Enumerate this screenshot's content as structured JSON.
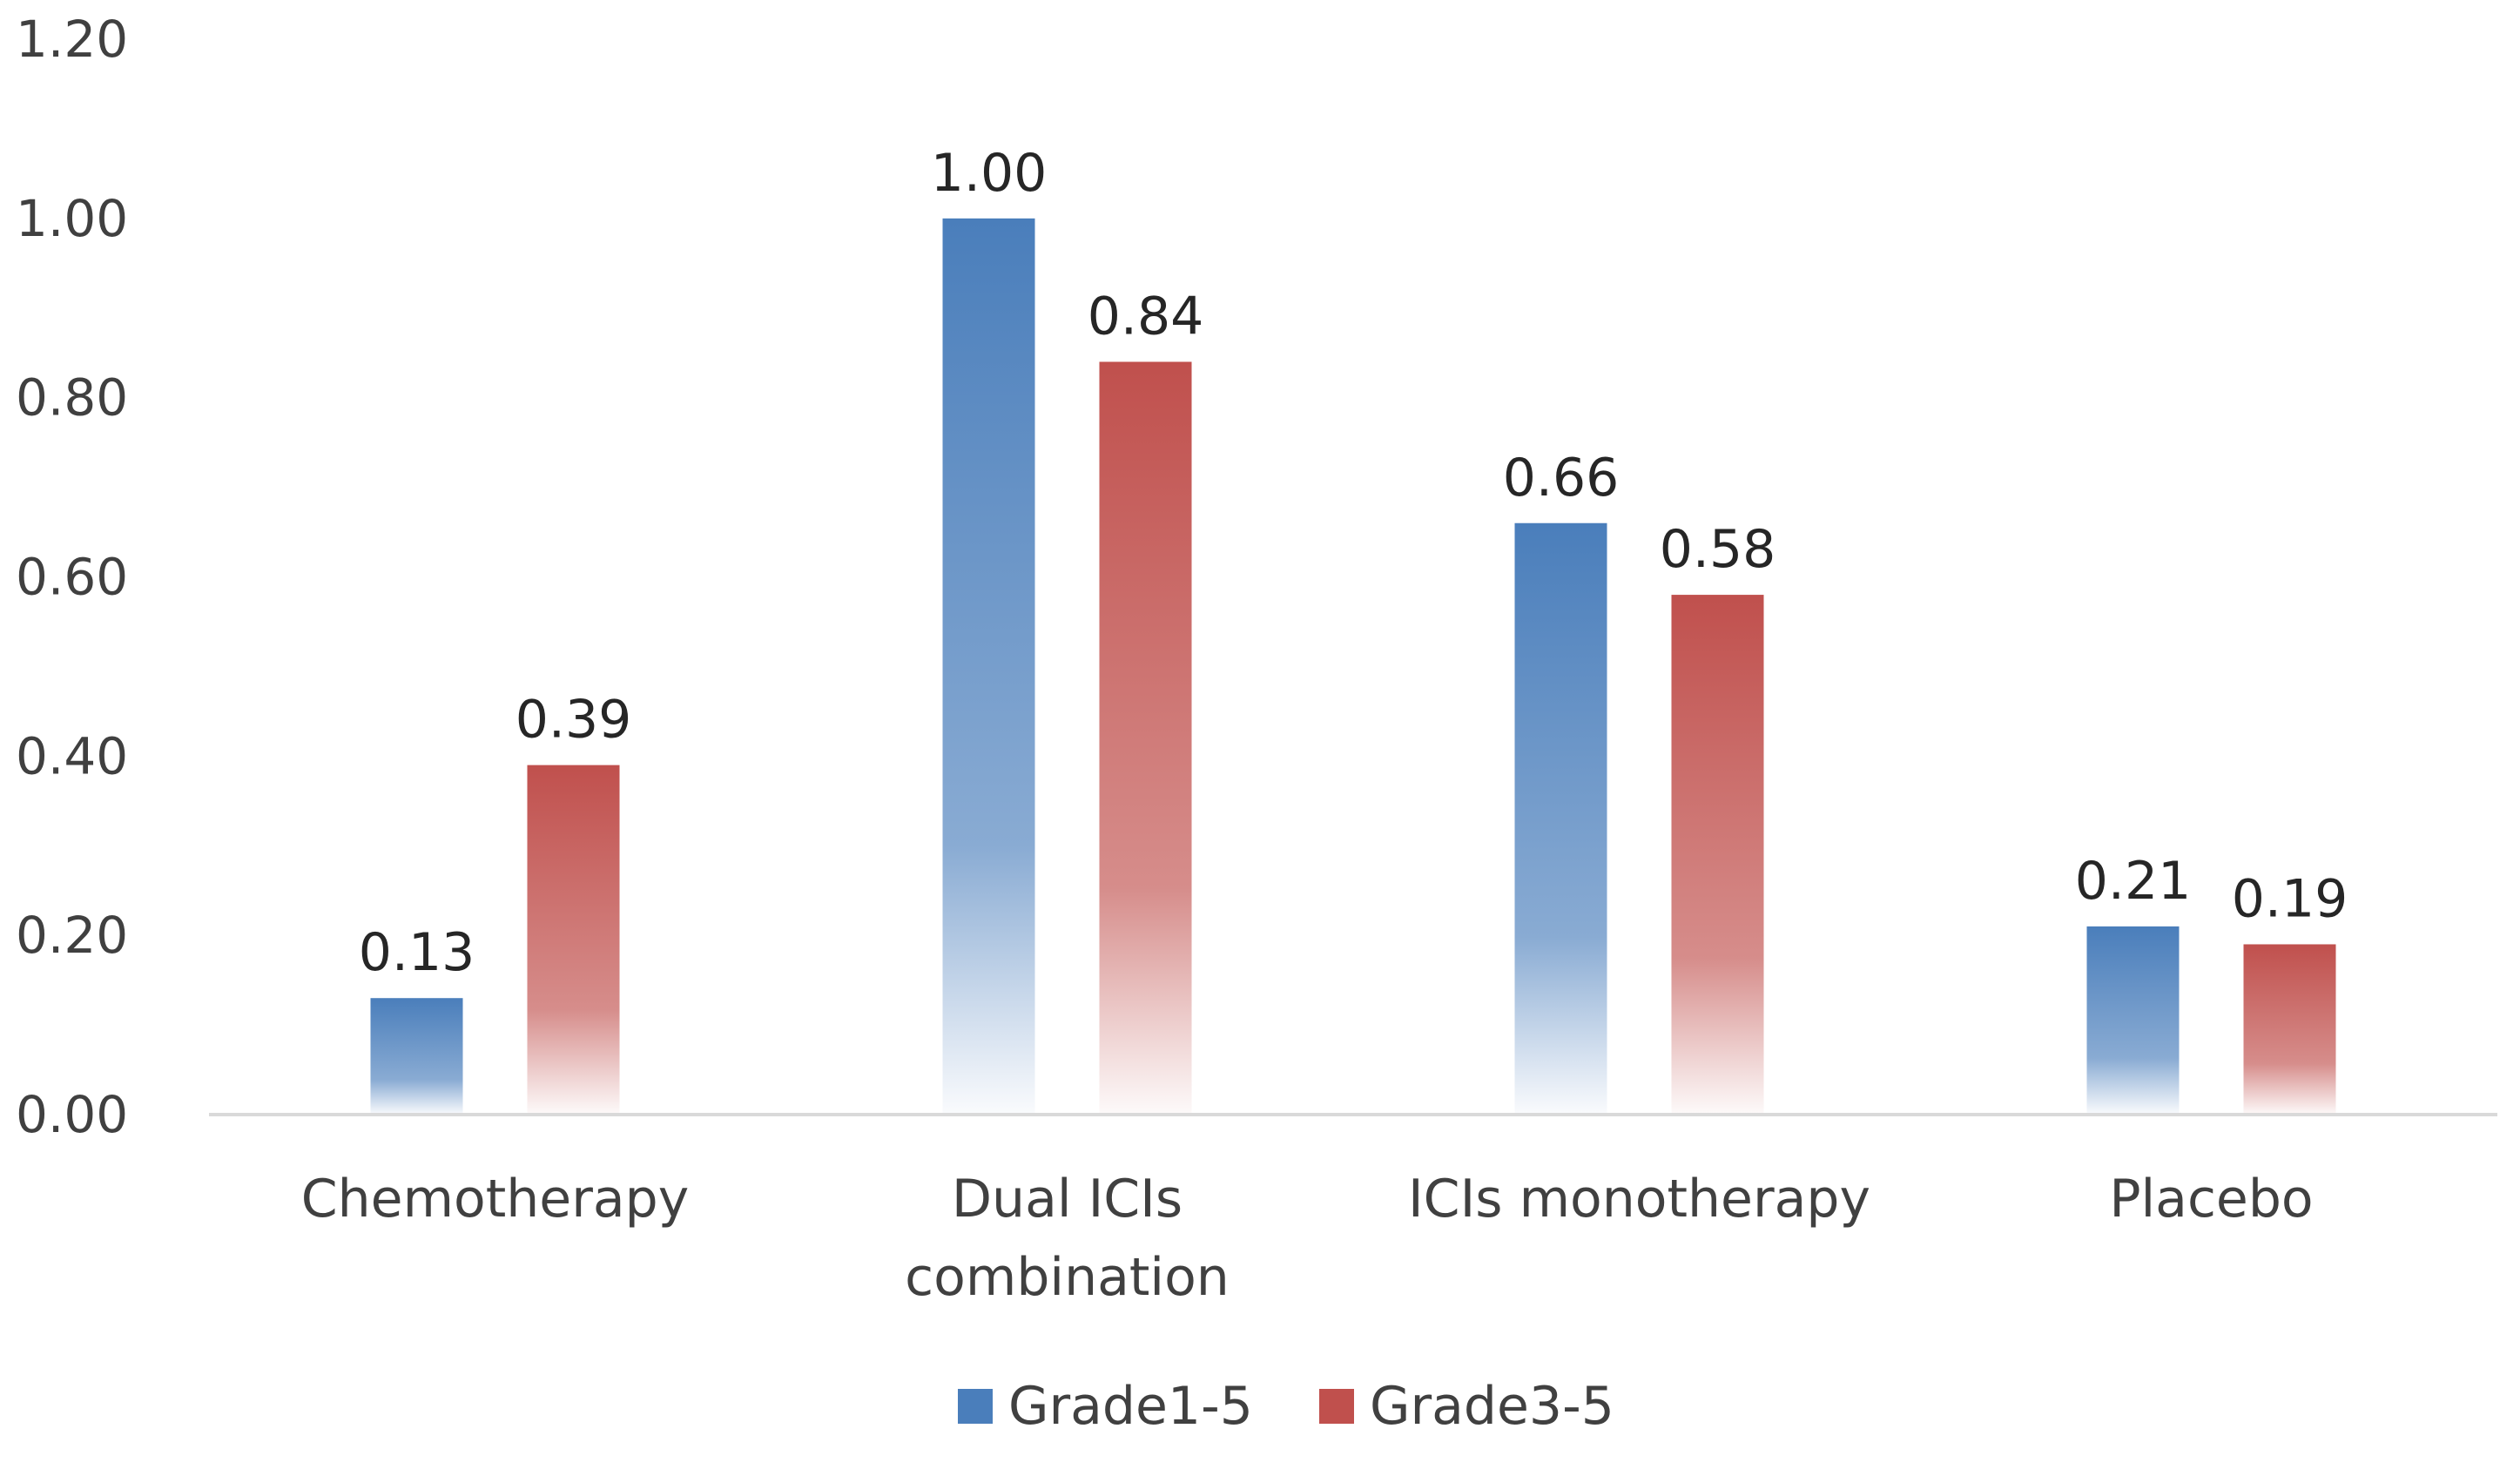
{
  "chart_data": {
    "type": "bar",
    "title": "",
    "xlabel": "",
    "ylabel": "",
    "categories": [
      [
        "Chemotherapy"
      ],
      [
        "Dual ICIs",
        "combination"
      ],
      [
        "ICIs monotherapy"
      ],
      [
        "Placebo"
      ]
    ],
    "series": [
      {
        "name": "Grade1-5",
        "color": "#4A7EBB",
        "values": [
          0.13,
          1.0,
          0.66,
          0.21
        ],
        "labels": [
          "0.13",
          "1.00",
          "0.66",
          "0.21"
        ]
      },
      {
        "name": "Grade3-5",
        "color": "#C0504D",
        "values": [
          0.39,
          0.84,
          0.58,
          0.19
        ],
        "labels": [
          "0.39",
          "0.84",
          "0.58",
          "0.19"
        ]
      }
    ],
    "ylim": [
      0,
      1.2
    ],
    "yticks": [
      "0.00",
      "0.20",
      "0.40",
      "0.60",
      "0.80",
      "1.00",
      "1.20"
    ],
    "ytick_values": [
      0,
      0.2,
      0.4,
      0.6,
      0.8,
      1.0,
      1.2
    ],
    "grid": false,
    "legend_position": "bottom-center"
  }
}
